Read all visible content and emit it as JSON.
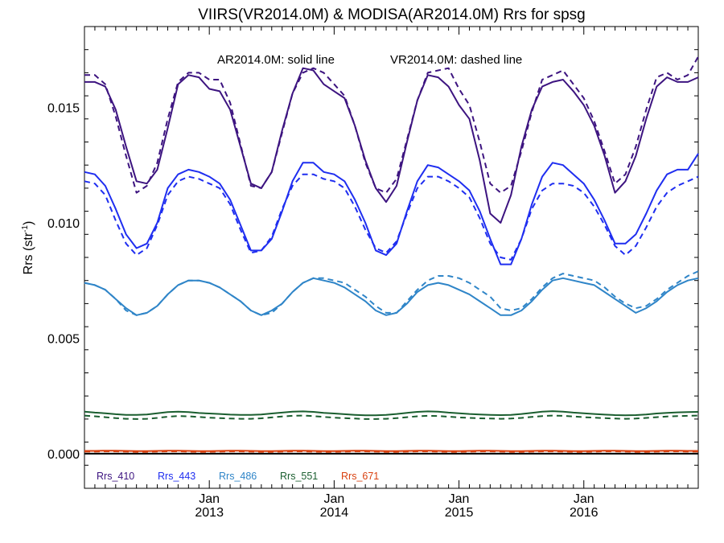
{
  "chart_data": {
    "type": "line",
    "title": "VIIRS(VR2014.0M) & MODISA(AR2014.0M)  Rrs for spsg",
    "annotation_solid": "AR2014.0M: solid line",
    "annotation_dashed": "VR2014.0M: dashed line",
    "ylabel": "Rrs (str",
    "ylabel_sup": "-1",
    "ylabel_close": ")",
    "xlabel": "",
    "ylim": [
      -0.0015,
      0.0185
    ],
    "xlim": [
      "2012-01",
      "2016-12"
    ],
    "yticks": [
      {
        "value": 0.0,
        "label": "0.000"
      },
      {
        "value": 0.005,
        "label": "0.005"
      },
      {
        "value": 0.01,
        "label": "0.010"
      },
      {
        "value": 0.015,
        "label": "0.015"
      }
    ],
    "xticks": [
      {
        "value": "2013-01",
        "month": "Jan",
        "year": "2013"
      },
      {
        "value": "2014-01",
        "month": "Jan",
        "year": "2014"
      },
      {
        "value": "2015-01",
        "month": "Jan",
        "year": "2015"
      },
      {
        "value": "2016-01",
        "month": "Jan",
        "year": "2016"
      }
    ],
    "legend_placement": "bottom",
    "grid": false,
    "x": [
      "2012-01",
      "2012-02",
      "2012-03",
      "2012-04",
      "2012-05",
      "2012-06",
      "2012-07",
      "2012-08",
      "2012-09",
      "2012-10",
      "2012-11",
      "2012-12",
      "2013-01",
      "2013-02",
      "2013-03",
      "2013-04",
      "2013-05",
      "2013-06",
      "2013-07",
      "2013-08",
      "2013-09",
      "2013-10",
      "2013-11",
      "2013-12",
      "2014-01",
      "2014-02",
      "2014-03",
      "2014-04",
      "2014-05",
      "2014-06",
      "2014-07",
      "2014-08",
      "2014-09",
      "2014-10",
      "2014-11",
      "2014-12",
      "2015-01",
      "2015-02",
      "2015-03",
      "2015-04",
      "2015-05",
      "2015-06",
      "2015-07",
      "2015-08",
      "2015-09",
      "2015-10",
      "2015-11",
      "2015-12",
      "2016-01",
      "2016-02",
      "2016-03",
      "2016-04",
      "2016-05",
      "2016-06",
      "2016-07",
      "2016-08",
      "2016-09",
      "2016-10",
      "2016-11",
      "2016-12"
    ],
    "series": [
      {
        "name": "Rrs_410",
        "color": "#3d1480",
        "style": "solid",
        "values": [
          0.0161,
          0.0161,
          0.0159,
          0.0149,
          0.0133,
          0.0118,
          0.0117,
          0.0123,
          0.0141,
          0.016,
          0.0164,
          0.0163,
          0.0158,
          0.0157,
          0.0149,
          0.0133,
          0.0117,
          0.0115,
          0.0122,
          0.014,
          0.0156,
          0.0167,
          0.0166,
          0.016,
          0.0157,
          0.0154,
          0.0142,
          0.0127,
          0.0115,
          0.0109,
          0.0116,
          0.0135,
          0.0153,
          0.0164,
          0.0163,
          0.0159,
          0.0151,
          0.0145,
          0.0127,
          0.0104,
          0.01,
          0.0112,
          0.0133,
          0.0149,
          0.0159,
          0.0161,
          0.0162,
          0.0157,
          0.0151,
          0.0142,
          0.0129,
          0.0113,
          0.0118,
          0.0129,
          0.0145,
          0.0159,
          0.0163,
          0.0161,
          0.0161,
          0.0163
        ]
      },
      {
        "name": "Rrs_410",
        "color": "#3d1480",
        "style": "dashed",
        "values": [
          0.0164,
          0.0164,
          0.016,
          0.0146,
          0.0129,
          0.0113,
          0.0116,
          0.0126,
          0.0145,
          0.0161,
          0.0165,
          0.0165,
          0.0162,
          0.0162,
          0.0152,
          0.0134,
          0.0116,
          0.0115,
          0.0122,
          0.0139,
          0.0156,
          0.0165,
          0.0167,
          0.0165,
          0.016,
          0.0155,
          0.0142,
          0.0126,
          0.0115,
          0.0113,
          0.0119,
          0.0136,
          0.0153,
          0.0165,
          0.0166,
          0.0167,
          0.0158,
          0.0151,
          0.0135,
          0.0117,
          0.0113,
          0.0116,
          0.0131,
          0.0148,
          0.0162,
          0.0164,
          0.0166,
          0.016,
          0.0154,
          0.0144,
          0.0131,
          0.0117,
          0.0121,
          0.0133,
          0.0149,
          0.0163,
          0.0165,
          0.0162,
          0.0164,
          0.0172
        ]
      },
      {
        "name": "Rrs_443",
        "color": "#1f2ef0",
        "style": "solid",
        "values": [
          0.0122,
          0.0121,
          0.0116,
          0.0106,
          0.0095,
          0.0089,
          0.0091,
          0.01,
          0.0115,
          0.0121,
          0.0123,
          0.0122,
          0.012,
          0.0117,
          0.011,
          0.0099,
          0.0088,
          0.0088,
          0.0093,
          0.0105,
          0.0118,
          0.0126,
          0.0126,
          0.0122,
          0.0121,
          0.0118,
          0.011,
          0.01,
          0.0088,
          0.0086,
          0.0091,
          0.0105,
          0.0118,
          0.0125,
          0.0124,
          0.0121,
          0.0118,
          0.0114,
          0.0105,
          0.0093,
          0.0082,
          0.0082,
          0.0093,
          0.0108,
          0.012,
          0.0126,
          0.0125,
          0.0121,
          0.0117,
          0.011,
          0.0101,
          0.0091,
          0.0091,
          0.0095,
          0.0104,
          0.0114,
          0.0121,
          0.0123,
          0.0123,
          0.013
        ]
      },
      {
        "name": "Rrs_443",
        "color": "#1f2ef0",
        "style": "dashed",
        "values": [
          0.0118,
          0.0117,
          0.0112,
          0.0101,
          0.0091,
          0.0086,
          0.0089,
          0.0099,
          0.0112,
          0.0118,
          0.012,
          0.0119,
          0.0117,
          0.0115,
          0.0108,
          0.0097,
          0.0087,
          0.0088,
          0.0094,
          0.0106,
          0.0116,
          0.0121,
          0.0121,
          0.0119,
          0.0118,
          0.0115,
          0.0107,
          0.0097,
          0.0089,
          0.0087,
          0.0092,
          0.0104,
          0.0115,
          0.012,
          0.012,
          0.0118,
          0.0115,
          0.0111,
          0.0102,
          0.0091,
          0.0085,
          0.0084,
          0.0093,
          0.0106,
          0.0114,
          0.0117,
          0.0117,
          0.0116,
          0.0113,
          0.0107,
          0.0099,
          0.009,
          0.0086,
          0.009,
          0.0098,
          0.0107,
          0.0113,
          0.0116,
          0.0118,
          0.012
        ]
      },
      {
        "name": "Rrs_486",
        "color": "#2f85c8",
        "style": "solid",
        "values": [
          0.0074,
          0.0073,
          0.0071,
          0.0067,
          0.0063,
          0.006,
          0.0061,
          0.0064,
          0.0069,
          0.0073,
          0.0075,
          0.0075,
          0.0074,
          0.0072,
          0.0069,
          0.0066,
          0.0062,
          0.006,
          0.0062,
          0.0065,
          0.007,
          0.0074,
          0.0076,
          0.0075,
          0.0074,
          0.0072,
          0.0069,
          0.0066,
          0.0062,
          0.006,
          0.0061,
          0.0065,
          0.007,
          0.0073,
          0.0074,
          0.0073,
          0.0071,
          0.0069,
          0.0066,
          0.0063,
          0.006,
          0.006,
          0.0062,
          0.0066,
          0.0071,
          0.0075,
          0.0076,
          0.0075,
          0.0074,
          0.0073,
          0.007,
          0.0067,
          0.0064,
          0.0061,
          0.0063,
          0.0066,
          0.007,
          0.0073,
          0.0075,
          0.0076
        ]
      },
      {
        "name": "Rrs_486",
        "color": "#2f85c8",
        "style": "dashed",
        "values": [
          0.0074,
          0.0073,
          0.0071,
          0.0067,
          0.0062,
          0.006,
          0.0061,
          0.0064,
          0.0069,
          0.0073,
          0.0075,
          0.0075,
          0.0074,
          0.0072,
          0.0069,
          0.0066,
          0.0062,
          0.006,
          0.0061,
          0.0065,
          0.007,
          0.0074,
          0.0076,
          0.0076,
          0.0075,
          0.0074,
          0.0071,
          0.0068,
          0.0064,
          0.0061,
          0.0061,
          0.0066,
          0.0071,
          0.0075,
          0.0077,
          0.0077,
          0.0076,
          0.0074,
          0.0071,
          0.0068,
          0.0063,
          0.0062,
          0.0063,
          0.0067,
          0.0072,
          0.0076,
          0.0078,
          0.0077,
          0.0076,
          0.0075,
          0.0072,
          0.0068,
          0.0065,
          0.0063,
          0.0064,
          0.0067,
          0.0071,
          0.0074,
          0.0077,
          0.0079
        ]
      },
      {
        "name": "Rrs_551",
        "color": "#1a5e2f",
        "style": "solid",
        "values": [
          0.00182,
          0.00178,
          0.00175,
          0.00171,
          0.00168,
          0.00168,
          0.0017,
          0.00175,
          0.0018,
          0.00182,
          0.0018,
          0.00176,
          0.00174,
          0.00172,
          0.00169,
          0.00168,
          0.00168,
          0.0017,
          0.00174,
          0.00178,
          0.00182,
          0.00183,
          0.00181,
          0.00177,
          0.00174,
          0.00171,
          0.00168,
          0.00166,
          0.00166,
          0.00168,
          0.00172,
          0.00177,
          0.00181,
          0.00183,
          0.00182,
          0.00178,
          0.00175,
          0.00172,
          0.0017,
          0.00168,
          0.00167,
          0.00168,
          0.00172,
          0.00177,
          0.00182,
          0.00184,
          0.00182,
          0.00178,
          0.00175,
          0.00172,
          0.00169,
          0.00167,
          0.00166,
          0.00167,
          0.0017,
          0.00174,
          0.00177,
          0.00179,
          0.0018,
          0.00181
        ]
      },
      {
        "name": "Rrs_551",
        "color": "#1a5e2f",
        "style": "dashed",
        "values": [
          0.00165,
          0.00162,
          0.00158,
          0.00154,
          0.00151,
          0.0015,
          0.00151,
          0.00155,
          0.0016,
          0.00163,
          0.00162,
          0.00159,
          0.00156,
          0.00154,
          0.00152,
          0.00151,
          0.00151,
          0.00153,
          0.00157,
          0.00161,
          0.00164,
          0.00165,
          0.00163,
          0.00159,
          0.00156,
          0.00154,
          0.00152,
          0.0015,
          0.0015,
          0.00151,
          0.00154,
          0.00158,
          0.00162,
          0.00164,
          0.00163,
          0.0016,
          0.00157,
          0.00155,
          0.00153,
          0.00152,
          0.00151,
          0.00152,
          0.00155,
          0.00159,
          0.00163,
          0.00165,
          0.00164,
          0.00161,
          0.00158,
          0.00156,
          0.00154,
          0.00152,
          0.00151,
          0.00152,
          0.00155,
          0.00158,
          0.00161,
          0.00163,
          0.00164,
          0.00165
        ]
      },
      {
        "name": "Rrs_671",
        "color": "#d9400f",
        "style": "solid",
        "values": [
          0.00012,
          0.00012,
          0.00013,
          0.00013,
          0.00012,
          0.00011,
          0.00011,
          0.00012,
          0.00013,
          0.00013,
          0.00012,
          0.00011,
          0.00011,
          0.00012,
          0.00013,
          0.00013,
          0.00012,
          0.00011,
          0.00011,
          0.00012,
          0.00013,
          0.00013,
          0.00012,
          0.00011,
          0.00011,
          0.00012,
          0.00013,
          0.00013,
          0.00012,
          0.00011,
          0.00011,
          0.00012,
          0.00013,
          0.00013,
          0.00012,
          0.00011,
          0.00011,
          0.00012,
          0.00013,
          0.00013,
          0.00012,
          0.00011,
          0.00011,
          0.00012,
          0.00013,
          0.00013,
          0.00012,
          0.00011,
          0.00011,
          0.00012,
          0.00013,
          0.00013,
          0.00012,
          0.00011,
          0.00011,
          0.00012,
          0.00013,
          0.00013,
          0.00012,
          0.00012
        ]
      },
      {
        "name": "Rrs_671",
        "color": "#d9400f",
        "style": "dashed",
        "values": [
          9e-05,
          9e-05,
          0.0001,
          0.0001,
          9e-05,
          8e-05,
          8e-05,
          9e-05,
          0.0001,
          0.0001,
          9e-05,
          8e-05,
          8e-05,
          9e-05,
          0.0001,
          0.0001,
          9e-05,
          8e-05,
          8e-05,
          9e-05,
          0.0001,
          0.0001,
          9e-05,
          8e-05,
          8e-05,
          9e-05,
          0.0001,
          0.0001,
          9e-05,
          8e-05,
          8e-05,
          9e-05,
          0.0001,
          0.0001,
          9e-05,
          8e-05,
          8e-05,
          9e-05,
          0.0001,
          0.0001,
          9e-05,
          8e-05,
          8e-05,
          9e-05,
          0.0001,
          0.0001,
          9e-05,
          8e-05,
          8e-05,
          9e-05,
          0.0001,
          0.0001,
          9e-05,
          8e-05,
          8e-05,
          9e-05,
          0.0001,
          0.0001,
          9e-05,
          9e-05
        ]
      }
    ],
    "zero_line": 0.0,
    "legend": [
      {
        "label": "Rrs_410",
        "color": "#3d1480"
      },
      {
        "label": "Rrs_443",
        "color": "#1f2ef0"
      },
      {
        "label": "Rrs_486",
        "color": "#2f85c8"
      },
      {
        "label": "Rrs_551",
        "color": "#1a5e2f"
      },
      {
        "label": "Rrs_671",
        "color": "#d9400f"
      }
    ]
  }
}
